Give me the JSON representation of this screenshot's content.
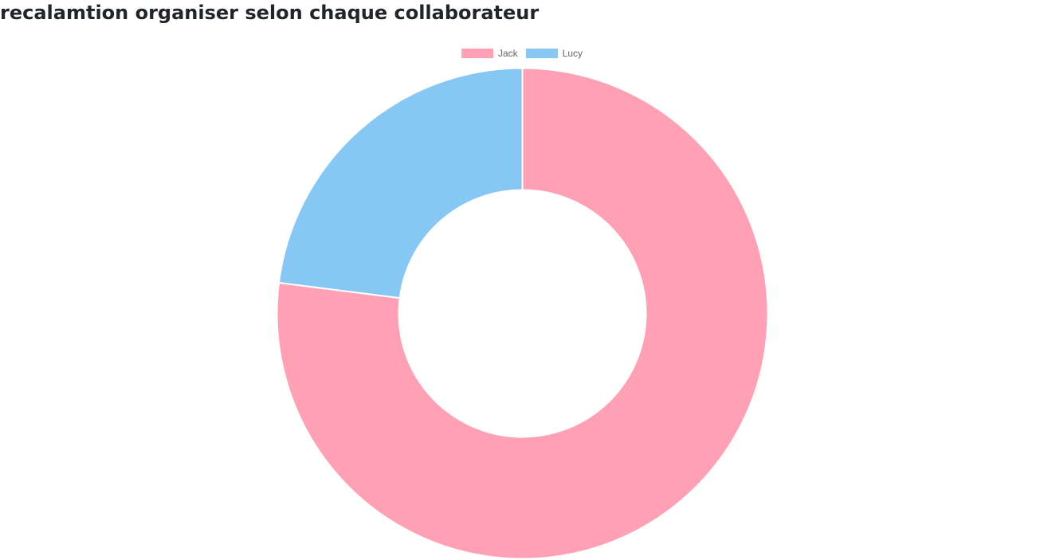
{
  "page": {
    "title": "recalamtion organiser selon chaque collaborateur"
  },
  "chart_data": {
    "type": "pie",
    "variant": "doughnut",
    "title": "",
    "legend_position": "top",
    "categories": [
      "Jack",
      "Lucy"
    ],
    "values": [
      77,
      23
    ],
    "colors": [
      "#ffa1b5",
      "#86c7f3"
    ],
    "border_color": "#ffffff"
  }
}
